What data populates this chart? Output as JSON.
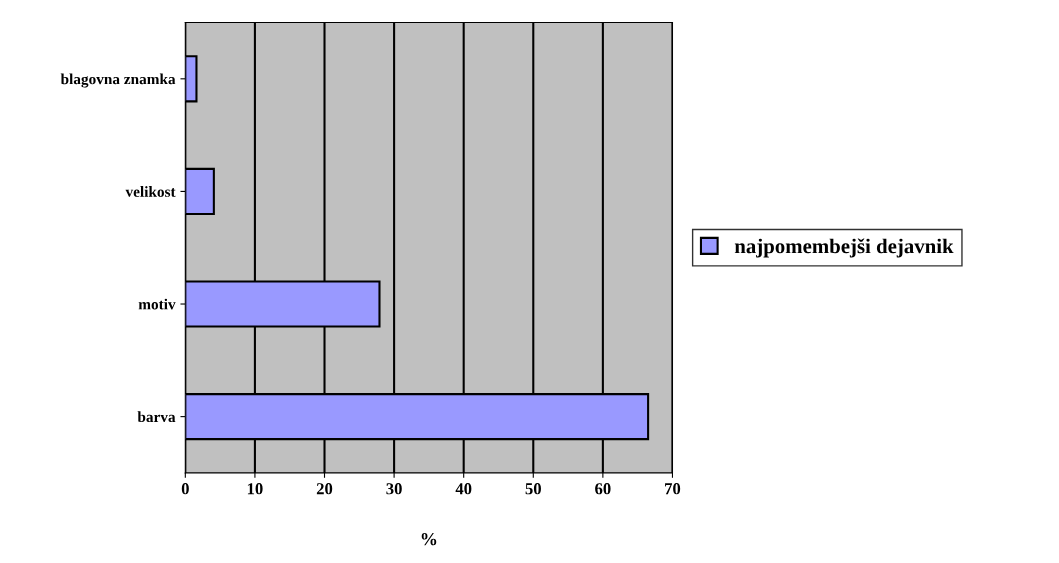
{
  "chart_data": {
    "type": "bar",
    "orientation": "horizontal",
    "xlabel": "%",
    "categories": [
      "blagovna znamka",
      "velikost",
      "motiv",
      "barva"
    ],
    "series": [
      {
        "name": "najpomembejši dejavnik",
        "color": "#9999ff",
        "values": [
          1.6,
          4.1,
          27.9,
          66.5
        ]
      }
    ],
    "xlim": [
      0,
      70
    ],
    "xticks": [
      0,
      10,
      20,
      30,
      40,
      50,
      60,
      70
    ],
    "grid": "x",
    "legend": "right"
  }
}
